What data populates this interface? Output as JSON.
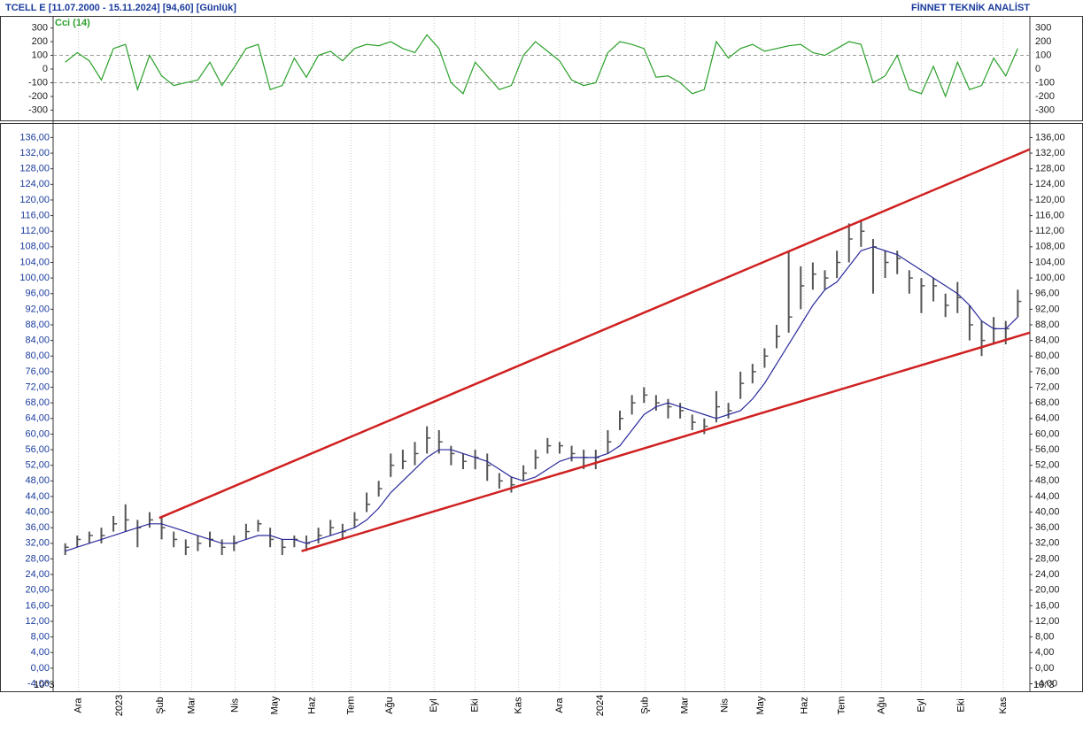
{
  "header": {
    "title": "TCELL E  [11.07.2000 - 15.11.2024]  [94,60]  [Günlük]",
    "source": "FİNNET TEKNİK ANALİST"
  },
  "chart_data": [
    {
      "type": "ohlc",
      "unit_label": "10^3",
      "color": "#555555",
      "grid": true,
      "xlim": [
        0,
        81
      ],
      "ylim": [
        -5.7,
        139.5
      ],
      "x": [
        1,
        2,
        3,
        4,
        5,
        6,
        7,
        8,
        9,
        10,
        11,
        12,
        13,
        14,
        15,
        16,
        17,
        18,
        19,
        20,
        21,
        22,
        23,
        24,
        25,
        26,
        27,
        28,
        29,
        30,
        31,
        32,
        33,
        34,
        35,
        36,
        37,
        38,
        39,
        40,
        41,
        42,
        43,
        44,
        45,
        46,
        47,
        48,
        49,
        50,
        51,
        52,
        53,
        54,
        55,
        56,
        57,
        58,
        59,
        60,
        61,
        62,
        63,
        64,
        65,
        66,
        67,
        68,
        69,
        70,
        71,
        72,
        73,
        74,
        75,
        76,
        77,
        78,
        79,
        80
      ],
      "high": [
        32,
        34,
        35,
        36,
        39,
        42,
        38,
        40,
        39,
        35,
        33,
        34,
        35,
        33,
        34,
        37,
        38,
        36,
        33,
        34,
        34,
        36,
        38,
        37,
        40,
        45,
        48,
        55,
        56,
        58,
        62,
        61,
        57,
        55,
        56,
        55,
        50,
        49,
        52,
        56,
        59,
        58,
        57,
        56,
        56,
        61,
        66,
        70,
        72,
        70,
        69,
        68,
        65,
        64,
        71,
        68,
        76,
        78,
        82,
        88,
        107,
        103,
        104,
        102,
        107,
        114,
        115,
        110,
        107,
        107,
        102,
        100,
        100,
        96,
        99,
        93,
        89,
        90,
        89,
        97
      ],
      "low": [
        29,
        31,
        32,
        32,
        35,
        35,
        31,
        36,
        33,
        31,
        29,
        30,
        31,
        29,
        30,
        33,
        35,
        31,
        29,
        31,
        30,
        32,
        34,
        33,
        36,
        40,
        44,
        49,
        51,
        52,
        55,
        55,
        52,
        51,
        51,
        48,
        46,
        45,
        48,
        51,
        55,
        55,
        53,
        51,
        51,
        55,
        61,
        65,
        68,
        66,
        64,
        64,
        61,
        60,
        63,
        64,
        69,
        73,
        77,
        82,
        86,
        92,
        97,
        97,
        100,
        104,
        108,
        96,
        100,
        101,
        96,
        91,
        94,
        90,
        91,
        84,
        80,
        83,
        83,
        90
      ],
      "close": [
        31,
        33,
        34,
        34,
        37,
        38,
        36,
        38,
        36,
        33,
        31,
        32,
        33,
        31,
        32,
        35,
        37,
        33,
        31,
        33,
        32,
        34,
        36,
        35,
        38,
        42,
        46,
        52,
        53,
        55,
        59,
        58,
        55,
        53,
        54,
        52,
        48,
        47,
        50,
        54,
        57,
        57,
        55,
        54,
        54,
        58,
        64,
        68,
        70,
        68,
        67,
        66,
        63,
        62,
        67,
        66,
        73,
        76,
        80,
        85,
        90,
        98,
        101,
        100,
        104,
        110,
        112,
        108,
        104,
        105,
        100,
        98,
        98,
        93,
        95,
        88,
        84,
        87,
        87,
        94
      ],
      "moving_average": {
        "color": "#2a2a9c",
        "values": [
          30,
          31,
          32,
          33,
          34,
          35,
          36,
          37,
          37,
          36,
          35,
          34,
          33,
          32,
          32,
          33,
          34,
          34,
          33,
          33,
          32,
          33,
          34,
          35,
          36,
          38,
          41,
          45,
          48,
          51,
          54,
          56,
          56,
          55,
          54,
          53,
          51,
          49,
          48,
          49,
          51,
          53,
          54,
          54,
          54,
          55,
          57,
          61,
          65,
          67,
          68,
          67,
          66,
          65,
          64,
          65,
          66,
          69,
          73,
          78,
          83,
          88,
          93,
          97,
          99,
          103,
          107,
          108,
          107,
          106,
          104,
          102,
          100,
          98,
          96,
          93,
          89,
          87,
          87,
          90
        ]
      },
      "trend_lines": [
        {
          "color": "#d02020",
          "x": [
            8.8,
            81
          ],
          "y": [
            38.5,
            133
          ]
        },
        {
          "color": "#d02020",
          "x": [
            20.6,
            81
          ],
          "y": [
            30,
            86
          ]
        }
      ],
      "xticks": [
        {
          "value": 2.1,
          "label": "Ara"
        },
        {
          "value": 5.5,
          "label": "2023"
        },
        {
          "value": 8.9,
          "label": "Şub"
        },
        {
          "value": 11.5,
          "label": "Mar"
        },
        {
          "value": 15.1,
          "label": "Nis"
        },
        {
          "value": 18.4,
          "label": "May"
        },
        {
          "value": 21.5,
          "label": "Haz"
        },
        {
          "value": 24.7,
          "label": "Tem"
        },
        {
          "value": 27.9,
          "label": "Ağu"
        },
        {
          "value": 31.6,
          "label": "Eyl"
        },
        {
          "value": 35.0,
          "label": "Eki"
        },
        {
          "value": 38.6,
          "label": "Kas"
        },
        {
          "value": 42.0,
          "label": "Ara"
        },
        {
          "value": 45.4,
          "label": "2024"
        },
        {
          "value": 49.1,
          "label": "Şub"
        },
        {
          "value": 52.4,
          "label": "Mar"
        },
        {
          "value": 55.7,
          "label": "Nis"
        },
        {
          "value": 58.7,
          "label": "May"
        },
        {
          "value": 62.3,
          "label": "Haz"
        },
        {
          "value": 65.4,
          "label": "Tem"
        },
        {
          "value": 68.7,
          "label": "Ağu"
        },
        {
          "value": 72.0,
          "label": "Eyl"
        },
        {
          "value": 75.3,
          "label": "Eki"
        },
        {
          "value": 78.8,
          "label": "Kas"
        }
      ],
      "yticks": [
        {
          "value": 136,
          "label": "136,00"
        },
        {
          "value": 132,
          "label": "132,00"
        },
        {
          "value": 128,
          "label": "128,00"
        },
        {
          "value": 124,
          "label": "124,00"
        },
        {
          "value": 120,
          "label": "120,00"
        },
        {
          "value": 116,
          "label": "116,00"
        },
        {
          "value": 112,
          "label": "112,00"
        },
        {
          "value": 108,
          "label": "108,00"
        },
        {
          "value": 104,
          "label": "104,00"
        },
        {
          "value": 100,
          "label": "100,00"
        },
        {
          "value": 96,
          "label": "96,00"
        },
        {
          "value": 92,
          "label": "92,00"
        },
        {
          "value": 88,
          "label": "88,00"
        },
        {
          "value": 84,
          "label": "84,00"
        },
        {
          "value": 80,
          "label": "80,00"
        },
        {
          "value": 76,
          "label": "76,00"
        },
        {
          "value": 72,
          "label": "72,00"
        },
        {
          "value": 68,
          "label": "68,00"
        },
        {
          "value": 64,
          "label": "64,00"
        },
        {
          "value": 60,
          "label": "60,00"
        },
        {
          "value": 56,
          "label": "56,00"
        },
        {
          "value": 52,
          "label": "52,00"
        },
        {
          "value": 48,
          "label": "48,00"
        },
        {
          "value": 44,
          "label": "44,00"
        },
        {
          "value": 40,
          "label": "40,00"
        },
        {
          "value": 36,
          "label": "36,00"
        },
        {
          "value": 32,
          "label": "32,00"
        },
        {
          "value": 28,
          "label": "28,00"
        },
        {
          "value": 24,
          "label": "24,00"
        },
        {
          "value": 20,
          "label": "20,00"
        },
        {
          "value": 16,
          "label": "16,00"
        },
        {
          "value": 12,
          "label": "12,00"
        },
        {
          "value": 8,
          "label": "8,00"
        },
        {
          "value": 4,
          "label": "4,00"
        },
        {
          "value": 0,
          "label": "0,00"
        },
        {
          "value": -4,
          "label": "-4,00"
        }
      ]
    },
    {
      "type": "line",
      "title": "Cci (14)",
      "color": "#2aa02a",
      "xlim": [
        0,
        81
      ],
      "ylim": [
        -375,
        375
      ],
      "x": [
        1,
        2,
        3,
        4,
        5,
        6,
        7,
        8,
        9,
        10,
        11,
        12,
        13,
        14,
        15,
        16,
        17,
        18,
        19,
        20,
        21,
        22,
        23,
        24,
        25,
        26,
        27,
        28,
        29,
        30,
        31,
        32,
        33,
        34,
        35,
        36,
        37,
        38,
        39,
        40,
        41,
        42,
        43,
        44,
        45,
        46,
        47,
        48,
        49,
        50,
        51,
        52,
        53,
        54,
        55,
        56,
        57,
        58,
        59,
        60,
        61,
        62,
        63,
        64,
        65,
        66,
        67,
        68,
        69,
        70,
        71,
        72,
        73,
        74,
        75,
        76,
        77,
        78,
        79,
        80
      ],
      "values": [
        50,
        120,
        60,
        -80,
        150,
        180,
        -150,
        100,
        -50,
        -120,
        -100,
        -80,
        50,
        -120,
        10,
        150,
        180,
        -150,
        -120,
        80,
        -60,
        100,
        130,
        60,
        150,
        180,
        170,
        200,
        150,
        120,
        250,
        150,
        -100,
        -180,
        50,
        -50,
        -150,
        -120,
        100,
        200,
        130,
        60,
        -80,
        -120,
        -100,
        120,
        200,
        180,
        150,
        -60,
        -50,
        -100,
        -180,
        -150,
        200,
        80,
        150,
        180,
        130,
        150,
        170,
        180,
        120,
        100,
        150,
        200,
        180,
        -100,
        -50,
        100,
        -150,
        -180,
        20,
        -200,
        50,
        -150,
        -120,
        80,
        -50,
        150
      ],
      "guide_lines": [
        100,
        -100
      ],
      "yticks": [
        300,
        200,
        100,
        0,
        -100,
        -200,
        -300
      ]
    }
  ]
}
